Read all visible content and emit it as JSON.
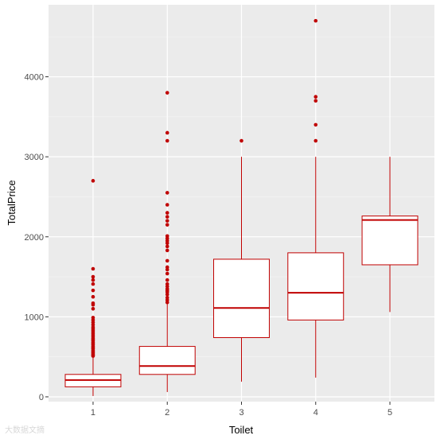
{
  "chart_data": {
    "type": "boxplot",
    "xlabel": "Toilet",
    "ylabel": "TotalPrice",
    "categories": [
      "1",
      "2",
      "3",
      "4",
      "5"
    ],
    "ylim": [
      -60,
      4900
    ],
    "yticks": [
      0,
      1000,
      2000,
      3000,
      4000
    ],
    "grid": true,
    "box_color": "#c00000",
    "panel_color": "#ebebeb",
    "boxes": [
      {
        "category": "1",
        "whisker_low": 10,
        "q1": 125,
        "median": 210,
        "q3": 280,
        "whisker_high": 490,
        "outliers": [
          510,
          520,
          535,
          550,
          565,
          580,
          600,
          615,
          630,
          650,
          665,
          680,
          700,
          715,
          730,
          750,
          770,
          790,
          810,
          830,
          850,
          870,
          900,
          930,
          960,
          990,
          1100,
          1150,
          1170,
          1250,
          1330,
          1410,
          1460,
          1500,
          1600,
          2700
        ]
      },
      {
        "category": "2",
        "whisker_low": 60,
        "q1": 280,
        "median": 385,
        "q3": 630,
        "whisker_high": 1160,
        "outliers": [
          1180,
          1210,
          1240,
          1280,
          1310,
          1330,
          1350,
          1380,
          1410,
          1460,
          1540,
          1590,
          1620,
          1700,
          1830,
          1880,
          1920,
          1950,
          1980,
          2010,
          2150,
          2200,
          2250,
          2300,
          2400,
          2550,
          3200,
          3300,
          3800
        ]
      },
      {
        "category": "3",
        "whisker_low": 190,
        "q1": 740,
        "median": 1110,
        "q3": 1720,
        "whisker_high": 3000,
        "outliers": [
          3200
        ]
      },
      {
        "category": "4",
        "whisker_low": 240,
        "q1": 960,
        "median": 1300,
        "q3": 1800,
        "whisker_high": 3000,
        "outliers": [
          3200,
          3400,
          3700,
          3750,
          4700
        ]
      },
      {
        "category": "5",
        "whisker_low": 1060,
        "q1": 1650,
        "median": 2210,
        "q3": 2260,
        "whisker_high": 3000,
        "outliers": []
      }
    ]
  },
  "watermark": "大数据文摘"
}
